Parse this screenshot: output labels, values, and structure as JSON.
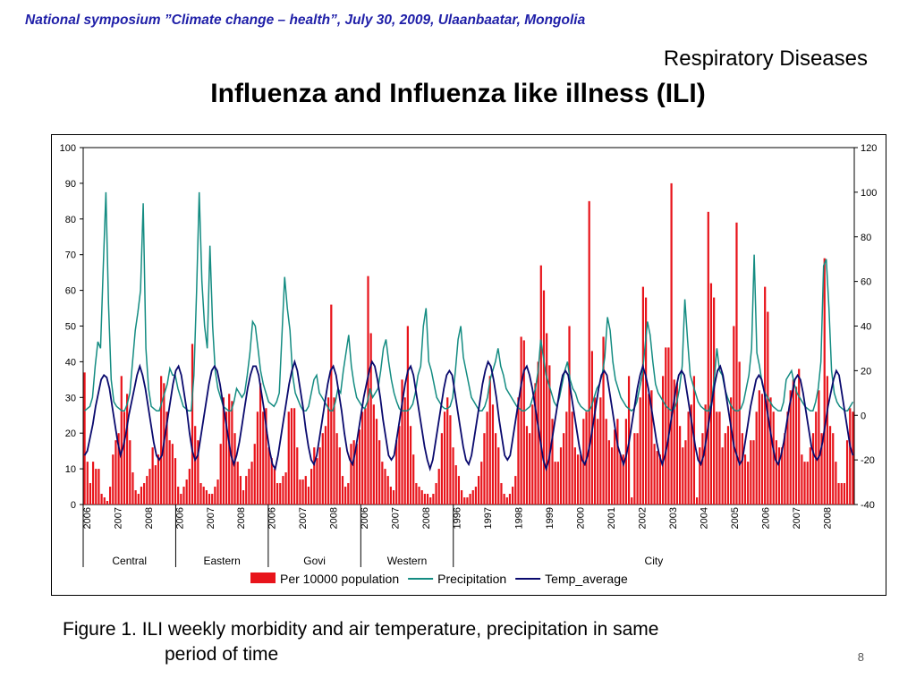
{
  "header": "National symposium ”Climate change – health”, July 30, 2009, Ulaanbaatar, Mongolia",
  "section": "Respiratory Diseases",
  "title": "Influenza and Influenza like illness (ILI)",
  "caption": {
    "line1": "Figure 1.  ILI weekly morbidity and air temperature, precipitation in same",
    "line2": "period of time"
  },
  "page_number": "8",
  "colors": {
    "bars": "#e8141b",
    "precipitation": "#148c82",
    "temperature": "#0a0a6e",
    "header": "#1f1fa8"
  },
  "chart_data": {
    "type": "bar",
    "title": "",
    "xlabel": "",
    "ylabel": "",
    "ylim": [
      0,
      100
    ],
    "y2lim": [
      -40,
      120
    ],
    "y_ticks": [
      "0",
      "10",
      "20",
      "30",
      "40",
      "50",
      "60",
      "70",
      "80",
      "90",
      "100"
    ],
    "y2_ticks": [
      "-40",
      "-20",
      "0",
      "20",
      "40",
      "60",
      "80",
      "100",
      "120"
    ],
    "groups": [
      {
        "name": "Central",
        "years": [
          "2006",
          "2007",
          "2008"
        ]
      },
      {
        "name": "Eastern",
        "years": [
          "2006",
          "2007",
          "2008"
        ]
      },
      {
        "name": "Govi",
        "years": [
          "2006",
          "2007",
          "2008"
        ]
      },
      {
        "name": "Western",
        "years": [
          "2006",
          "2007",
          "2008"
        ]
      },
      {
        "name": "City",
        "years": [
          "1996",
          "1997",
          "1998",
          "1999",
          "2000",
          "2001",
          "2002",
          "2003",
          "2004",
          "2005",
          "2006",
          "2007",
          "2008"
        ]
      }
    ],
    "legend_position": "bottom",
    "series": [
      {
        "name": "Per 10000 population",
        "kind": "bar",
        "axis": "left",
        "values": [
          37,
          12,
          6,
          12,
          10,
          10,
          3,
          2,
          1,
          5,
          14,
          18,
          20,
          36,
          26,
          31,
          18,
          9,
          4,
          3,
          5,
          6,
          8,
          10,
          16,
          11,
          14,
          36,
          34,
          26,
          18,
          17,
          13,
          5,
          3,
          5,
          7,
          10,
          45,
          22,
          18,
          6,
          5,
          4,
          3,
          3,
          5,
          7,
          17,
          30,
          26,
          31,
          29,
          20,
          12,
          8,
          4,
          8,
          10,
          12,
          17,
          26,
          34,
          26,
          27,
          16,
          13,
          10,
          6,
          6,
          8,
          9,
          26,
          27,
          27,
          16,
          7,
          7,
          8,
          5,
          10,
          16,
          13,
          16,
          20,
          22,
          30,
          56,
          30,
          20,
          16,
          8,
          5,
          6,
          17,
          18,
          17,
          21,
          26,
          27,
          64,
          48,
          28,
          24,
          18,
          12,
          10,
          8,
          5,
          4,
          18,
          22,
          35,
          30,
          50,
          22,
          14,
          6,
          5,
          4,
          3,
          3,
          2,
          3,
          6,
          10,
          20,
          26,
          30,
          25,
          16,
          11,
          8,
          4,
          2,
          2,
          3,
          4,
          5,
          8,
          12,
          20,
          26,
          36,
          28,
          20,
          16,
          6,
          3,
          2,
          3,
          5,
          8,
          30,
          47,
          46,
          22,
          20,
          28,
          34,
          40,
          67,
          60,
          48,
          39,
          24,
          12,
          12,
          16,
          20,
          26,
          50,
          26,
          16,
          14,
          14,
          24,
          26,
          85,
          43,
          30,
          24,
          30,
          47,
          24,
          18,
          16,
          21,
          24,
          14,
          14,
          24,
          36,
          2,
          20,
          20,
          30,
          61,
          58,
          31,
          32,
          17,
          15,
          14,
          36,
          44,
          44,
          90,
          35,
          34,
          22,
          16,
          18,
          26,
          28,
          36,
          2,
          16,
          20,
          28,
          82,
          62,
          58,
          26,
          26,
          16,
          20,
          22,
          30,
          50,
          79,
          40,
          20,
          14,
          12,
          18,
          18,
          26,
          32,
          31,
          61,
          54,
          30,
          26,
          18,
          16,
          16,
          20,
          26,
          32,
          35,
          33,
          38,
          14,
          12,
          12,
          16,
          20,
          26,
          32,
          20,
          69,
          36,
          22,
          20,
          12,
          6,
          6,
          6,
          18,
          27,
          26
        ]
      },
      {
        "name": "Precipitation",
        "kind": "line",
        "axis": "right",
        "values": [
          2,
          3,
          4,
          8,
          22,
          33,
          30,
          66,
          100,
          50,
          16,
          6,
          4,
          3,
          2,
          2,
          5,
          10,
          24,
          38,
          46,
          56,
          95,
          30,
          12,
          4,
          3,
          2,
          2,
          6,
          10,
          14,
          21,
          18,
          18,
          12,
          8,
          4,
          3,
          2,
          2,
          18,
          56,
          100,
          60,
          40,
          30,
          76,
          40,
          20,
          12,
          8,
          4,
          3,
          2,
          2,
          6,
          12,
          10,
          8,
          10,
          18,
          28,
          42,
          40,
          30,
          20,
          14,
          10,
          6,
          5,
          4,
          6,
          10,
          36,
          62,
          48,
          38,
          18,
          10,
          7,
          4,
          2,
          2,
          4,
          10,
          16,
          18,
          10,
          8,
          6,
          4,
          2,
          2,
          6,
          12,
          10,
          20,
          28,
          36,
          22,
          14,
          8,
          6,
          4,
          3,
          6,
          12,
          8,
          10,
          12,
          20,
          30,
          34,
          24,
          16,
          10,
          6,
          3,
          2,
          2,
          2,
          3,
          5,
          10,
          18,
          22,
          40,
          48,
          24,
          20,
          14,
          8,
          6,
          4,
          3,
          3,
          4,
          8,
          20,
          34,
          40,
          26,
          20,
          14,
          8,
          6,
          4,
          2,
          2,
          4,
          8,
          16,
          20,
          24,
          30,
          22,
          18,
          12,
          10,
          8,
          6,
          4,
          3,
          2,
          2,
          3,
          4,
          8,
          12,
          20,
          34,
          26,
          18,
          14,
          10,
          6,
          4,
          8,
          14,
          20,
          24,
          16,
          12,
          10,
          6,
          4,
          3,
          2,
          2,
          4,
          8,
          12,
          14,
          18,
          26,
          44,
          38,
          24,
          16,
          12,
          8,
          6,
          4,
          3,
          2,
          3,
          6,
          12,
          18,
          30,
          42,
          36,
          24,
          14,
          10,
          8,
          6,
          4,
          3,
          2,
          3,
          6,
          12,
          22,
          52,
          34,
          18,
          14,
          10,
          6,
          4,
          3,
          2,
          2,
          6,
          16,
          30,
          20,
          18,
          12,
          8,
          5,
          3,
          2,
          2,
          3,
          6,
          12,
          18,
          30,
          72,
          28,
          22,
          14,
          10,
          8,
          6,
          4,
          3,
          2,
          2,
          6,
          16,
          18,
          20,
          14,
          10,
          8,
          6,
          4,
          3,
          2,
          2,
          6,
          12,
          24,
          67,
          70,
          48,
          20,
          10,
          6,
          4,
          3,
          2,
          2,
          4,
          6
        ]
      },
      {
        "name": "Temp_average",
        "kind": "line",
        "axis": "right",
        "values": [
          -18,
          -16,
          -10,
          -4,
          4,
          10,
          16,
          18,
          17,
          12,
          4,
          -4,
          -12,
          -18,
          -14,
          -8,
          0,
          6,
          12,
          18,
          22,
          18,
          12,
          4,
          -4,
          -12,
          -18,
          -20,
          -18,
          -10,
          -2,
          6,
          14,
          20,
          22,
          18,
          10,
          2,
          -8,
          -16,
          -20,
          -18,
          -10,
          -2,
          6,
          14,
          20,
          22,
          20,
          14,
          6,
          -2,
          -10,
          -18,
          -22,
          -18,
          -12,
          -4,
          4,
          12,
          18,
          22,
          22,
          18,
          10,
          2,
          -8,
          -16,
          -22,
          -24,
          -18,
          -10,
          -2,
          6,
          14,
          20,
          24,
          20,
          12,
          4,
          -6,
          -14,
          -20,
          -22,
          -18,
          -10,
          -2,
          6,
          14,
          20,
          22,
          18,
          10,
          2,
          -8,
          -16,
          -20,
          -22,
          -16,
          -8,
          0,
          8,
          14,
          20,
          24,
          22,
          16,
          8,
          -2,
          -10,
          -18,
          -20,
          -18,
          -10,
          -2,
          6,
          14,
          20,
          22,
          18,
          10,
          2,
          -6,
          -14,
          -20,
          -24,
          -20,
          -12,
          -4,
          4,
          12,
          18,
          20,
          18,
          10,
          2,
          -6,
          -14,
          -20,
          -22,
          -18,
          -10,
          -2,
          6,
          14,
          20,
          24,
          22,
          16,
          8,
          -2,
          -10,
          -18,
          -20,
          -18,
          -10,
          -2,
          6,
          14,
          20,
          22,
          18,
          12,
          4,
          -4,
          -12,
          -20,
          -24,
          -20,
          -12,
          -4,
          4,
          12,
          18,
          20,
          18,
          10,
          2,
          -6,
          -14,
          -20,
          -22,
          -18,
          -12,
          -4,
          4,
          12,
          18,
          20,
          18,
          10,
          2,
          -6,
          -14,
          -18,
          -22,
          -18,
          -12,
          -4,
          4,
          12,
          18,
          22,
          18,
          12,
          4,
          -4,
          -12,
          -18,
          -22,
          -18,
          -12,
          -4,
          4,
          12,
          18,
          20,
          18,
          10,
          2,
          -6,
          -14,
          -20,
          -22,
          -18,
          -10,
          -2,
          6,
          14,
          20,
          22,
          18,
          10,
          2,
          -6,
          -14,
          -18,
          -22,
          -20,
          -12,
          -4,
          4,
          10,
          16,
          18,
          16,
          10,
          2,
          -6,
          -14,
          -20,
          -22,
          -18,
          -12,
          -4,
          4,
          10,
          16,
          18,
          16,
          10,
          2,
          -6,
          -14,
          -18,
          -20,
          -18,
          -12,
          -4,
          4,
          10,
          16,
          20,
          18,
          10,
          2,
          -6,
          -14,
          -18
        ]
      }
    ]
  }
}
